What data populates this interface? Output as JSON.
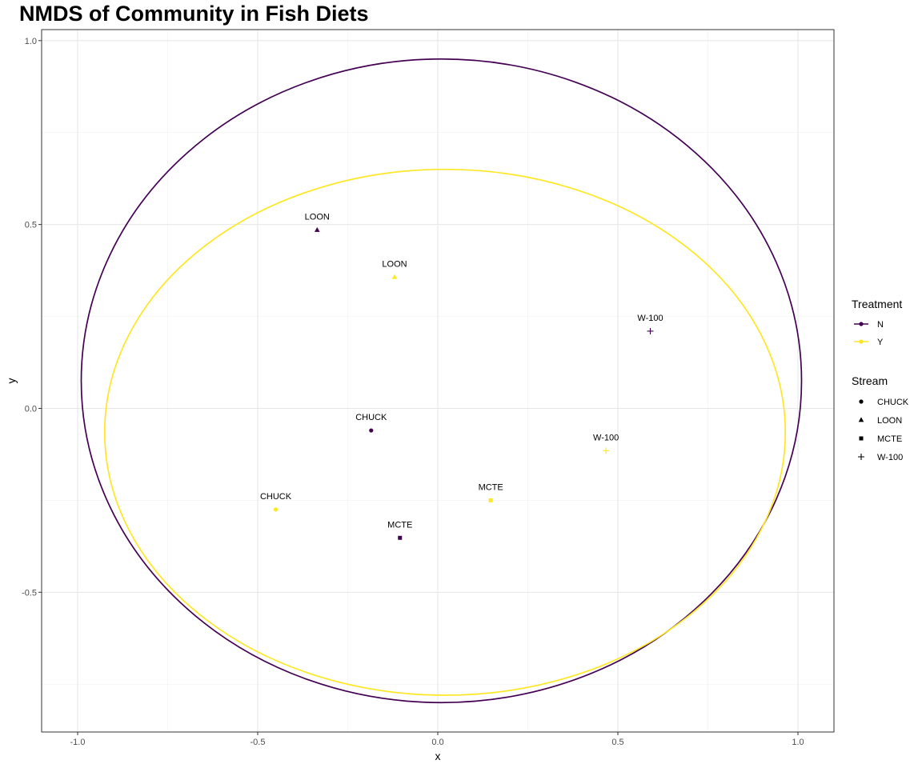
{
  "chart_data": {
    "type": "scatter",
    "title": "NMDS of Community in Fish Diets",
    "xlabel": "x",
    "ylabel": "y",
    "xlim": [
      -1.1,
      1.1
    ],
    "ylim": [
      -0.88,
      1.03
    ],
    "x_ticks": [
      -1.0,
      -0.5,
      0.0,
      0.5,
      1.0
    ],
    "x_tick_labels": [
      "-1.0",
      "-0.5",
      "0.0",
      "0.5",
      "1.0"
    ],
    "y_ticks": [
      -0.5,
      0.0,
      0.5,
      1.0
    ],
    "y_tick_labels": [
      "-0.5",
      "0.0",
      "0.5",
      "1.0"
    ],
    "grid": true,
    "legend_position": "right",
    "treatment_legend": {
      "title": "Treatment",
      "items": [
        {
          "label": "N",
          "color": "#440154"
        },
        {
          "label": "Y",
          "color": "#FDE725"
        }
      ]
    },
    "stream_legend": {
      "title": "Stream",
      "items": [
        {
          "label": "CHUCK",
          "shape": "circle"
        },
        {
          "label": "LOON",
          "shape": "triangle"
        },
        {
          "label": "MCTE",
          "shape": "square"
        },
        {
          "label": "W-100",
          "shape": "plus"
        }
      ]
    },
    "points": [
      {
        "x": -0.335,
        "y": 0.485,
        "label": "LOON",
        "treatment": "N",
        "stream": "LOON"
      },
      {
        "x": -0.12,
        "y": 0.357,
        "label": "LOON",
        "treatment": "Y",
        "stream": "LOON"
      },
      {
        "x": 0.59,
        "y": 0.21,
        "label": "W-100",
        "treatment": "N",
        "stream": "W-100"
      },
      {
        "x": 0.467,
        "y": -0.115,
        "label": "W-100",
        "treatment": "Y",
        "stream": "W-100"
      },
      {
        "x": -0.185,
        "y": -0.06,
        "label": "CHUCK",
        "treatment": "N",
        "stream": "CHUCK"
      },
      {
        "x": -0.45,
        "y": -0.275,
        "label": "CHUCK",
        "treatment": "Y",
        "stream": "CHUCK"
      },
      {
        "x": 0.147,
        "y": -0.25,
        "label": "MCTE",
        "treatment": "Y",
        "stream": "MCTE"
      },
      {
        "x": -0.105,
        "y": -0.352,
        "label": "MCTE",
        "treatment": "N",
        "stream": "MCTE"
      }
    ],
    "ellipses": [
      {
        "treatment": "N",
        "cx": 0.01,
        "cy": 0.075,
        "rx": 1.0,
        "ry": 0.875
      },
      {
        "treatment": "Y",
        "cx": 0.02,
        "cy": -0.065,
        "rx": 0.945,
        "ry": 0.715
      }
    ]
  }
}
